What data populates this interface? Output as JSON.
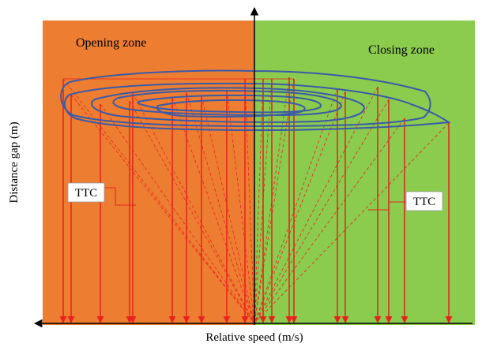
{
  "zones": {
    "opening": {
      "label": "Opening zone",
      "color": "#ED7D31"
    },
    "closing": {
      "label": "Closing zone",
      "color": "#8BCB4E"
    }
  },
  "axes": {
    "x_label": "Relative speed (m/s)",
    "y_label": "Distance gap (m)",
    "color": "#000000"
  },
  "annotations": {
    "ttc_left": "TTC",
    "ttc_right": "TTC"
  },
  "trajectory": {
    "color": "#3A5BA8"
  },
  "ttc_lines": {
    "color": "#E8231E"
  }
}
